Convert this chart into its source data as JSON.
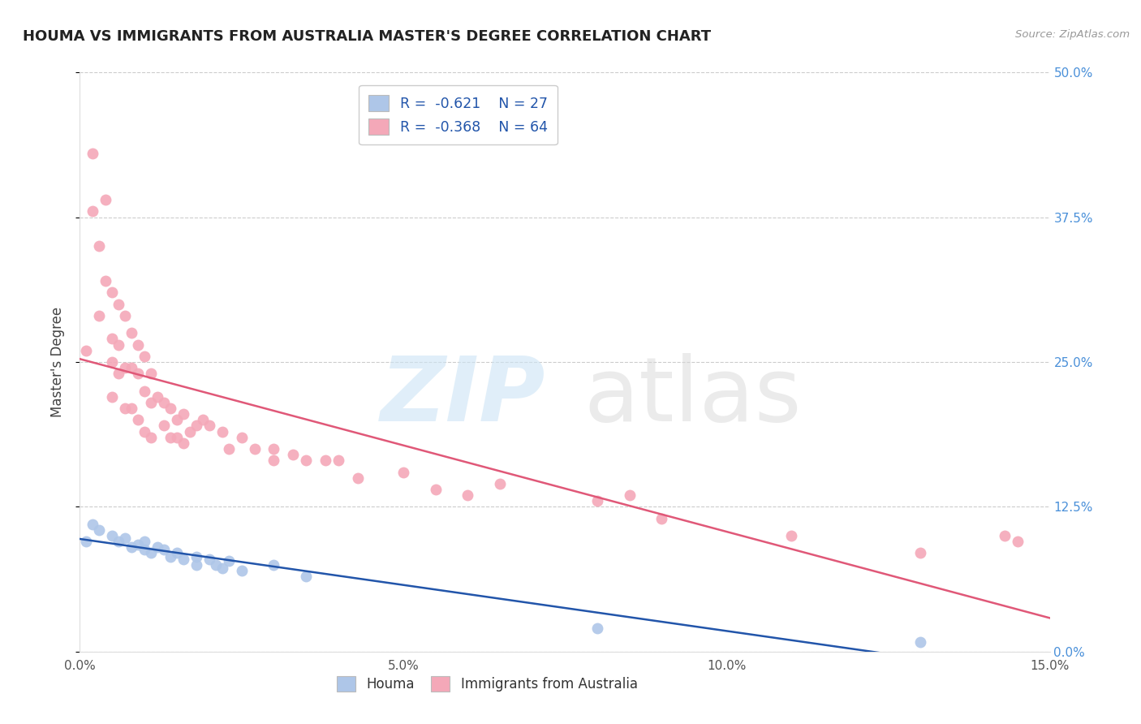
{
  "title": "HOUMA VS IMMIGRANTS FROM AUSTRALIA MASTER'S DEGREE CORRELATION CHART",
  "source": "Source: ZipAtlas.com",
  "ylabel": "Master's Degree",
  "xlim": [
    0.0,
    0.15
  ],
  "ylim": [
    0.0,
    0.5
  ],
  "xtick_vals": [
    0.0,
    0.05,
    0.1,
    0.15
  ],
  "xticklabels": [
    "0.0%",
    "5.0%",
    "10.0%",
    "15.0%"
  ],
  "ytick_vals": [
    0.0,
    0.125,
    0.25,
    0.375,
    0.5
  ],
  "yticklabels_right": [
    "0.0%",
    "12.5%",
    "25.0%",
    "37.5%",
    "50.0%"
  ],
  "houma_R": -0.621,
  "houma_N": 27,
  "australia_R": -0.368,
  "australia_N": 64,
  "houma_color": "#aec6e8",
  "houma_line_color": "#2255aa",
  "australia_color": "#f4a8b8",
  "australia_line_color": "#e05878",
  "legend_text_color": "#2255aa",
  "right_axis_color": "#4a90d9",
  "houma_scatter_x": [
    0.001,
    0.002,
    0.003,
    0.005,
    0.006,
    0.007,
    0.008,
    0.009,
    0.01,
    0.01,
    0.011,
    0.012,
    0.013,
    0.014,
    0.015,
    0.016,
    0.018,
    0.018,
    0.02,
    0.021,
    0.022,
    0.023,
    0.025,
    0.03,
    0.035,
    0.08,
    0.13
  ],
  "houma_scatter_y": [
    0.095,
    0.11,
    0.105,
    0.1,
    0.095,
    0.098,
    0.09,
    0.092,
    0.088,
    0.095,
    0.085,
    0.09,
    0.088,
    0.082,
    0.085,
    0.08,
    0.082,
    0.075,
    0.08,
    0.075,
    0.072,
    0.078,
    0.07,
    0.075,
    0.065,
    0.02,
    0.008
  ],
  "australia_scatter_x": [
    0.001,
    0.002,
    0.002,
    0.003,
    0.003,
    0.004,
    0.004,
    0.005,
    0.005,
    0.005,
    0.005,
    0.006,
    0.006,
    0.006,
    0.007,
    0.007,
    0.007,
    0.008,
    0.008,
    0.008,
    0.009,
    0.009,
    0.009,
    0.01,
    0.01,
    0.01,
    0.011,
    0.011,
    0.011,
    0.012,
    0.013,
    0.013,
    0.014,
    0.014,
    0.015,
    0.015,
    0.016,
    0.016,
    0.017,
    0.018,
    0.019,
    0.02,
    0.022,
    0.023,
    0.025,
    0.027,
    0.03,
    0.03,
    0.033,
    0.035,
    0.038,
    0.04,
    0.043,
    0.05,
    0.055,
    0.06,
    0.065,
    0.08,
    0.085,
    0.09,
    0.11,
    0.13,
    0.143,
    0.145
  ],
  "australia_scatter_y": [
    0.26,
    0.43,
    0.38,
    0.35,
    0.29,
    0.39,
    0.32,
    0.31,
    0.27,
    0.25,
    0.22,
    0.3,
    0.265,
    0.24,
    0.29,
    0.245,
    0.21,
    0.275,
    0.245,
    0.21,
    0.265,
    0.24,
    0.2,
    0.255,
    0.225,
    0.19,
    0.24,
    0.215,
    0.185,
    0.22,
    0.215,
    0.195,
    0.21,
    0.185,
    0.2,
    0.185,
    0.205,
    0.18,
    0.19,
    0.195,
    0.2,
    0.195,
    0.19,
    0.175,
    0.185,
    0.175,
    0.175,
    0.165,
    0.17,
    0.165,
    0.165,
    0.165,
    0.15,
    0.155,
    0.14,
    0.135,
    0.145,
    0.13,
    0.135,
    0.115,
    0.1,
    0.085,
    0.1,
    0.095
  ]
}
